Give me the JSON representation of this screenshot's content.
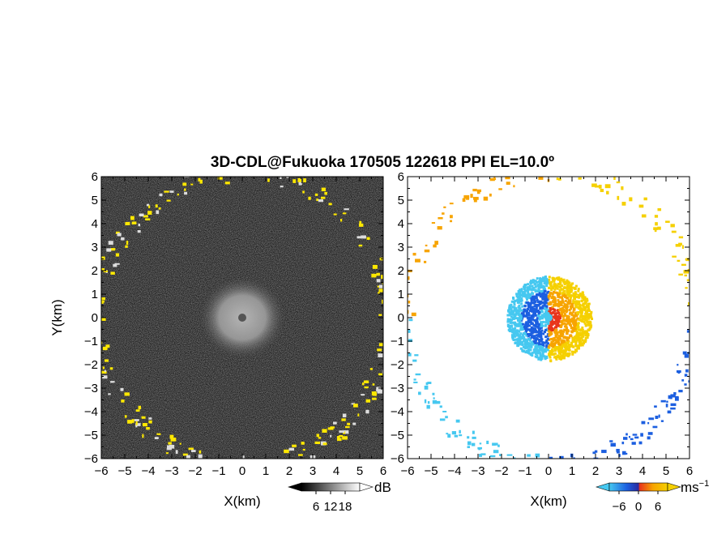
{
  "chart_data": [
    {
      "type": "heatmap",
      "panel": "left",
      "quantity": "reflectivity",
      "title": "3D-CDL@Fukuoka 170505 122618 PPI EL=10.0º",
      "xlabel": "X(km)",
      "ylabel": "Y(km)",
      "xlim": [
        -6,
        6
      ],
      "ylim": [
        -6,
        6
      ],
      "xticks": [
        "−6",
        "−5",
        "−4",
        "−3",
        "−2",
        "−1",
        "0",
        "1",
        "2",
        "3",
        "4",
        "5",
        "6"
      ],
      "yticks": [
        "6",
        "5",
        "4",
        "3",
        "2",
        "1",
        "0",
        "−1",
        "−2",
        "−3",
        "−4",
        "−5",
        "−6"
      ],
      "colorbar": {
        "label": "dB",
        "ticks": [
          "6",
          "12",
          "18"
        ],
        "range": [
          0,
          24
        ],
        "colormap": "grayscale-to-yellow"
      },
      "features": [
        {
          "name": "near-radar echo",
          "center_km": [
            0,
            0
          ],
          "radius_km": 1.8,
          "level_dB": 12
        },
        {
          "name": "clutter ring",
          "radius_km": 6.2,
          "level_dB": 20
        }
      ]
    },
    {
      "type": "heatmap",
      "panel": "right",
      "quantity": "doppler velocity",
      "xlabel": "X(km)",
      "xlim": [
        -6,
        6
      ],
      "ylim": [
        -6,
        6
      ],
      "xticks": [
        "−6",
        "−5",
        "−4",
        "−3",
        "−2",
        "−1",
        "0",
        "1",
        "2",
        "3",
        "4",
        "5",
        "6"
      ],
      "yticks": [
        "6",
        "5",
        "4",
        "3",
        "2",
        "1",
        "0",
        "−1",
        "−2",
        "−3",
        "−4",
        "−5",
        "−6"
      ],
      "colorbar": {
        "label": "ms",
        "label_exp": "−1",
        "ticks": [
          "−6",
          "0",
          "6"
        ],
        "range": [
          -9,
          9
        ],
        "colormap": "cyan-blue-red-yellow"
      },
      "features": [
        {
          "name": "dipole center",
          "center_km": [
            0,
            0
          ],
          "radius_km": 1.8,
          "west_velocity": -6,
          "east_velocity": 6
        }
      ]
    }
  ],
  "colors": {
    "echo_dark": "#1c1c1c",
    "echo_yellow": "#ffe800",
    "vel_blue": "#1c5fe0",
    "vel_cyan": "#46c8f0",
    "vel_red": "#e8341c",
    "vel_orange": "#f7a400",
    "vel_yellow": "#f5d000"
  }
}
